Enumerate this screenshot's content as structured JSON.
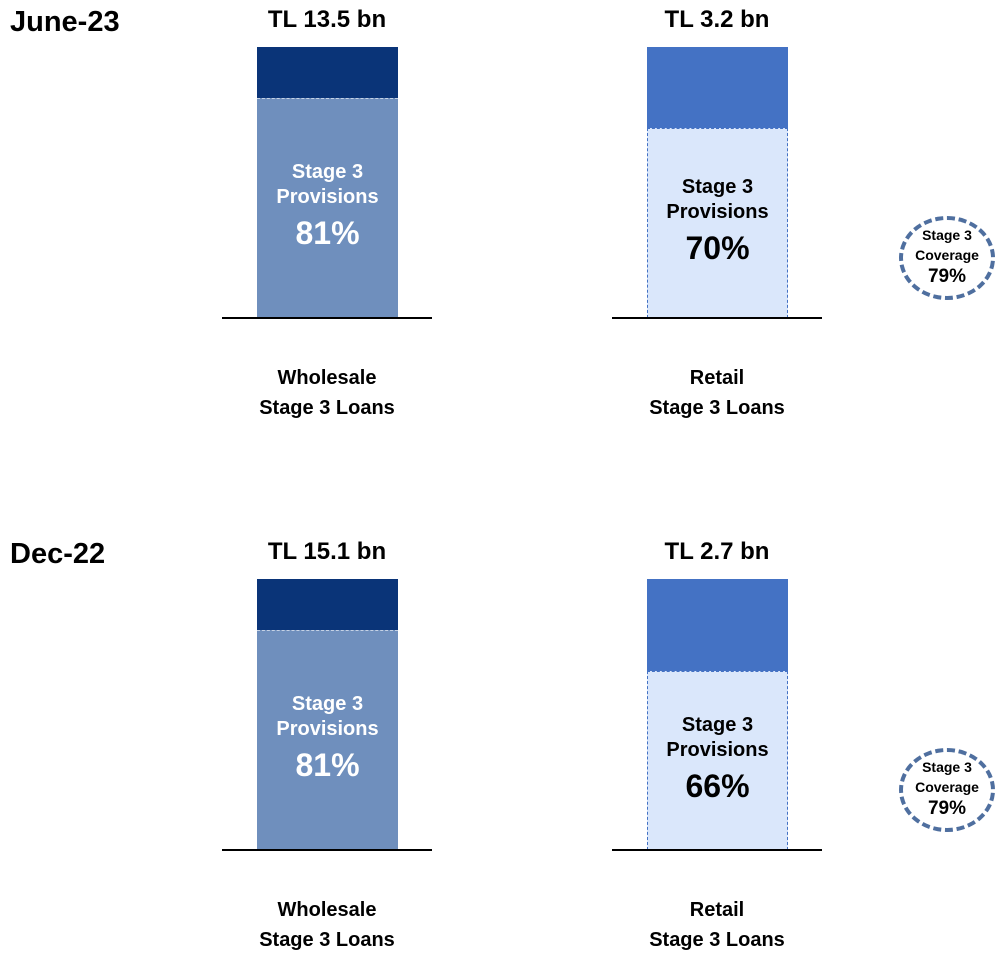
{
  "periods": [
    {
      "label": "June-23",
      "coverage_label": "Stage 3\nCoverage",
      "coverage": "79%"
    },
    {
      "label": "Dec-22",
      "coverage_label": "Stage 3\nCoverage",
      "coverage": "79%"
    }
  ],
  "chart_data": [
    {
      "type": "bar",
      "title": "TL 13.5 bn",
      "categories": [
        "Wholesale\nStage 3 Loans"
      ],
      "ylim": [
        0,
        100
      ],
      "series": [
        {
          "name": "Stage 3\nProvisions",
          "color": "#6f8fbd",
          "values": [
            81
          ],
          "value_labels": [
            "81%"
          ]
        }
      ]
    },
    {
      "type": "bar",
      "title": "TL 3.2 bn",
      "categories": [
        "Retail\nStage 3 Loans"
      ],
      "ylim": [
        0,
        100
      ],
      "series": [
        {
          "name": "Stage 3\nProvisions",
          "color": "#dae7fb",
          "values": [
            70
          ],
          "value_labels": [
            "70%"
          ]
        }
      ]
    },
    {
      "type": "bar",
      "title": "TL 15.1 bn",
      "categories": [
        "Wholesale\nStage 3 Loans"
      ],
      "ylim": [
        0,
        100
      ],
      "series": [
        {
          "name": "Stage 3\nProvisions",
          "color": "#6f8fbd",
          "values": [
            81
          ],
          "value_labels": [
            "81%"
          ]
        }
      ]
    },
    {
      "type": "bar",
      "title": "TL 2.7 bn",
      "categories": [
        "Retail\nStage 3 Loans"
      ],
      "ylim": [
        0,
        100
      ],
      "series": [
        {
          "name": "Stage 3\nProvisions",
          "color": "#dae7fb",
          "values": [
            66
          ],
          "value_labels": [
            "66%"
          ]
        }
      ]
    }
  ]
}
